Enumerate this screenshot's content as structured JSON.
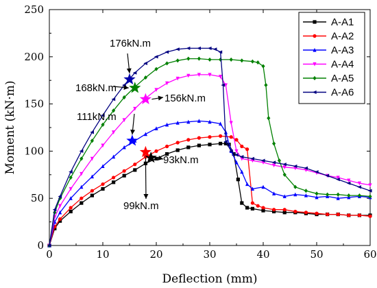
{
  "chart_data": {
    "type": "line",
    "xlabel": "Deflection (mm)",
    "ylabel": "Moment (kN·m)",
    "xlim": [
      0,
      60
    ],
    "ylim": [
      0,
      250
    ],
    "xticks": [
      "0",
      "10",
      "20",
      "30",
      "40",
      "50",
      "60"
    ],
    "yticks": [
      "0",
      "50",
      "100",
      "150",
      "200",
      "250"
    ],
    "grid": false,
    "legend_position": "top-right",
    "series": [
      {
        "name": "A-A1",
        "color": "#000000",
        "marker": "square",
        "x": [
          0,
          1,
          2,
          4,
          6,
          8,
          10,
          12,
          14,
          16,
          18,
          20,
          22,
          24,
          26,
          28,
          30,
          32,
          33,
          33.6,
          34.5,
          35.3,
          36,
          37,
          38,
          40,
          42,
          44,
          46,
          48,
          50,
          52,
          54,
          56,
          58,
          60
        ],
        "y": [
          0,
          18,
          26,
          36,
          45,
          53,
          60,
          67,
          74,
          80,
          87,
          92,
          97,
          101,
          104,
          106,
          107,
          108,
          108,
          107,
          97,
          70,
          45,
          40,
          39,
          37,
          36,
          35,
          35,
          34,
          33,
          33,
          33,
          32,
          32,
          32
        ]
      },
      {
        "name": "A-A2",
        "color": "#ff0000",
        "marker": "circle",
        "x": [
          0,
          1,
          2,
          4,
          6,
          8,
          10,
          12,
          14,
          16,
          18,
          20,
          22,
          24,
          26,
          28,
          30,
          32,
          34,
          35,
          36,
          37,
          38,
          39,
          40,
          42,
          44,
          46,
          48,
          50,
          52,
          54,
          56,
          58,
          60
        ],
        "y": [
          0,
          20,
          28,
          40,
          50,
          58,
          65,
          72,
          79,
          86,
          94,
          100,
          105,
          109,
          112,
          114,
          115,
          116,
          115,
          112,
          105,
          102,
          45,
          42,
          40,
          38,
          38,
          36,
          35,
          34,
          33,
          33,
          32,
          32,
          31
        ]
      },
      {
        "name": "A-A3",
        "color": "#0000ff",
        "marker": "triangle",
        "x": [
          0,
          1,
          2,
          4,
          6,
          8,
          10,
          12,
          14,
          16,
          18,
          20,
          22,
          24,
          26,
          28,
          30,
          32,
          33,
          34,
          35,
          36,
          37,
          38,
          40,
          42,
          44,
          46,
          48,
          50,
          52,
          54,
          56,
          58,
          60
        ],
        "y": [
          0,
          25,
          35,
          50,
          62,
          73,
          84,
          94,
          104,
          111,
          118,
          124,
          128,
          130,
          131,
          132,
          131,
          129,
          120,
          100,
          88,
          78,
          65,
          60,
          62,
          55,
          52,
          54,
          53,
          51,
          52,
          50,
          51,
          52,
          51
        ]
      },
      {
        "name": "A-A4",
        "color": "#ff00ff",
        "marker": "triangle-down",
        "x": [
          0,
          1,
          2,
          4,
          6,
          8,
          10,
          12,
          14,
          16,
          18,
          20,
          22,
          24,
          26,
          28,
          30,
          32,
          33,
          34,
          35,
          36,
          38,
          40,
          42,
          44,
          46,
          48,
          50,
          52,
          54,
          56,
          58,
          60
        ],
        "y": [
          0,
          30,
          42,
          60,
          76,
          92,
          106,
          120,
          133,
          145,
          156,
          165,
          172,
          177,
          180,
          181,
          181,
          179,
          170,
          130,
          100,
          92,
          90,
          88,
          85,
          83,
          82,
          80,
          77,
          74,
          72,
          69,
          66,
          64
        ]
      },
      {
        "name": "A-A5",
        "color": "#008000",
        "marker": "diamond",
        "x": [
          0,
          1,
          2,
          4,
          6,
          8,
          10,
          12,
          14,
          16,
          18,
          20,
          22,
          24,
          26,
          28,
          30,
          32,
          34,
          36,
          38,
          39,
          40,
          40.5,
          41,
          42,
          43,
          44,
          46,
          48,
          50,
          52,
          54,
          56,
          58,
          60
        ],
        "y": [
          0,
          35,
          50,
          72,
          92,
          111,
          128,
          143,
          157,
          168,
          178,
          187,
          193,
          196,
          198,
          198,
          197,
          197,
          197,
          196,
          195,
          194,
          190,
          170,
          135,
          108,
          90,
          75,
          62,
          58,
          55,
          54,
          54,
          53,
          53,
          52
        ]
      },
      {
        "name": "A-A6",
        "color": "#000080",
        "marker": "left-triangle",
        "x": [
          0,
          1,
          2,
          4,
          6,
          8,
          10,
          12,
          14,
          16,
          18,
          20,
          22,
          24,
          26,
          28,
          30,
          31,
          32,
          32.5,
          33,
          34,
          35,
          36,
          38,
          40,
          42,
          44,
          46,
          48,
          50,
          52,
          54,
          56,
          58,
          60
        ],
        "y": [
          0,
          38,
          52,
          78,
          100,
          120,
          138,
          155,
          170,
          183,
          193,
          200,
          205,
          208,
          209,
          209,
          209,
          208,
          205,
          170,
          110,
          100,
          96,
          94,
          92,
          90,
          88,
          86,
          84,
          82,
          78,
          74,
          70,
          66,
          62,
          58
        ]
      }
    ],
    "annotations": [
      {
        "text": "176kN.m",
        "star_x": 15,
        "star_y": 176,
        "star_color": "#0000aa"
      },
      {
        "text": "168kN.m",
        "star_x": 16,
        "star_y": 167,
        "star_color": "#008000"
      },
      {
        "text": "156kN.m",
        "star_x": 18,
        "star_y": 155,
        "star_color": "#ff00ff"
      },
      {
        "text": "111kN.m",
        "star_x": 15.5,
        "star_y": 111,
        "star_color": "#0000ff"
      },
      {
        "text": "93kN.m",
        "star_x": 19,
        "star_y": 93,
        "star_color": "#000000"
      },
      {
        "text": "99kN.m",
        "star_x": 18,
        "star_y": 99,
        "star_color": "#ff0000"
      }
    ]
  }
}
